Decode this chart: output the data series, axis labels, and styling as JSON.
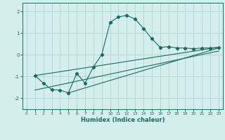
{
  "xlabel": "Humidex (Indice chaleur)",
  "bg_color": "#d4eeec",
  "line_color": "#1a6b5e",
  "grid_color": "#aed4d0",
  "xlim": [
    -0.5,
    23.5
  ],
  "ylim": [
    -2.5,
    2.4
  ],
  "yticks": [
    -2,
    -1,
    0,
    1,
    2
  ],
  "xticks": [
    0,
    1,
    2,
    3,
    4,
    5,
    6,
    7,
    8,
    9,
    10,
    11,
    12,
    13,
    14,
    15,
    16,
    17,
    18,
    19,
    20,
    21,
    22,
    23
  ],
  "curve1_x": [
    1,
    2,
    3,
    4,
    5,
    6,
    7,
    8,
    9,
    10,
    11,
    12,
    13,
    14,
    15,
    16,
    17,
    18,
    19,
    20,
    21,
    22,
    23
  ],
  "curve1_y": [
    -0.95,
    -1.3,
    -1.6,
    -1.62,
    -1.75,
    -0.85,
    -1.3,
    -0.55,
    0.02,
    1.5,
    1.75,
    1.82,
    1.65,
    1.22,
    0.75,
    0.35,
    0.38,
    0.32,
    0.32,
    0.28,
    0.32,
    0.32,
    0.35
  ],
  "line2_x": [
    1,
    23
  ],
  "line2_y": [
    -0.95,
    0.35
  ],
  "line3_x": [
    1,
    23
  ],
  "line3_y": [
    -1.62,
    0.18
  ],
  "line4_x": [
    5,
    23
  ],
  "line4_y": [
    -1.75,
    0.32
  ]
}
